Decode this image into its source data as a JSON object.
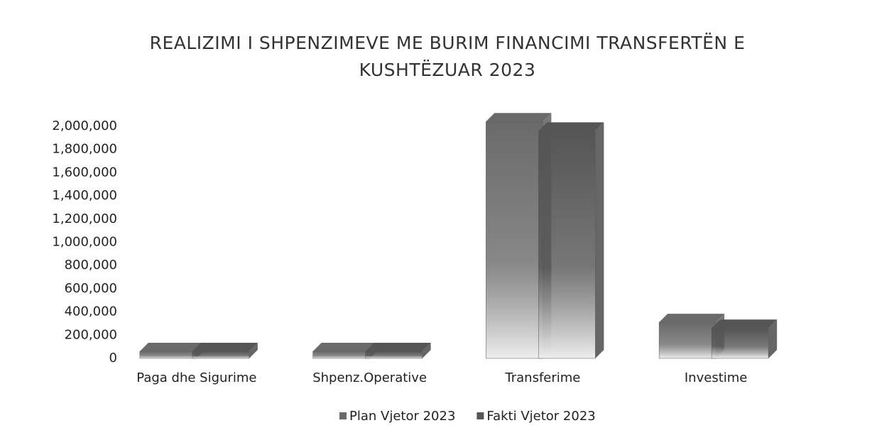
{
  "chart_data": {
    "type": "bar3d",
    "title": "REALIZIMI I SHPENZIMEVE ME BURIM FINANCIMI TRANSFERTËN E KUSHTËZUAR 2023",
    "categories": [
      "Paga dhe Sigurime",
      "Shpenz.Operative",
      "Transferime",
      "Investime"
    ],
    "series": [
      {
        "name": "Plan Vjetor 2023",
        "color": "#6a6a6a",
        "values": [
          0,
          0,
          1980000,
          250000
        ]
      },
      {
        "name": "Fakti Vjetor 2023",
        "color": "#555555",
        "values": [
          0,
          0,
          1900000,
          200000
        ]
      }
    ],
    "ylim": [
      0,
      2000000
    ],
    "yticks": [
      {
        "value": 0,
        "label": "0"
      },
      {
        "value": 200000,
        "label": "200,000"
      },
      {
        "value": 400000,
        "label": "400,000"
      },
      {
        "value": 600000,
        "label": "600,000"
      },
      {
        "value": 800000,
        "label": "800,000"
      },
      {
        "value": 1000000,
        "label": "1,000,000"
      },
      {
        "value": 1200000,
        "label": "1,200,000"
      },
      {
        "value": 1400000,
        "label": "1,400,000"
      },
      {
        "value": 1600000,
        "label": "1,600,000"
      },
      {
        "value": 1800000,
        "label": "1,800,000"
      },
      {
        "value": 2000000,
        "label": "2,000,000"
      }
    ],
    "grid": false,
    "legend": "bottom"
  }
}
